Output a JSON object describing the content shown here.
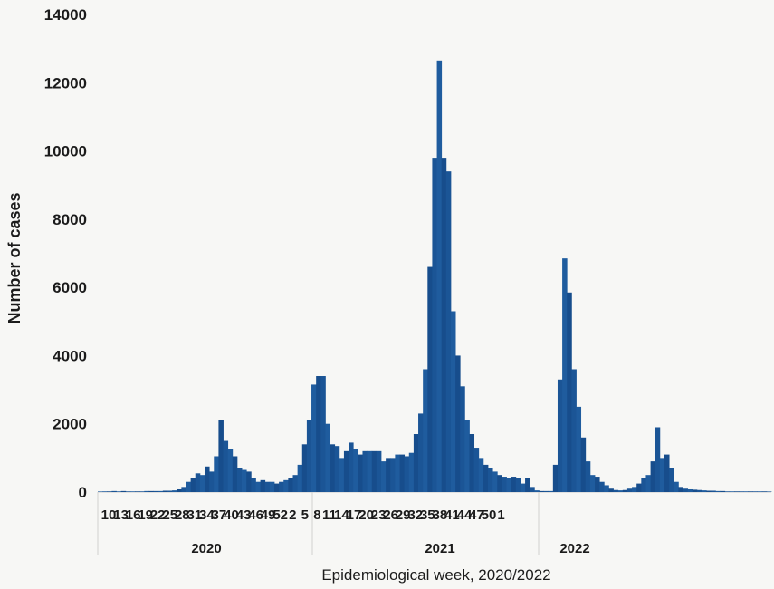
{
  "chart_data": {
    "type": "bar",
    "title": "",
    "xlabel": "Epidemiological week, 2020/2022",
    "ylabel": "Number of cases",
    "ylim": [
      0,
      14000
    ],
    "yticks": [
      "0",
      "2000",
      "4000",
      "6000",
      "8000",
      "10000",
      "12000",
      "14000"
    ],
    "xtick_labels": [
      "10",
      "13",
      "16",
      "19",
      "22",
      "25",
      "28",
      "31",
      "34",
      "37",
      "40",
      "43",
      "46",
      "49",
      "52",
      "2",
      "5",
      "8",
      "11",
      "14",
      "17",
      "20",
      "23",
      "26",
      "29",
      "32",
      "35",
      "38",
      "41",
      "44",
      "47",
      "50",
      "1"
    ],
    "year_labels": [
      "2020",
      "2021",
      "2022"
    ],
    "bar_color": "#1b5596",
    "series": [
      {
        "values": [
          10,
          20,
          20,
          30,
          20,
          30,
          20,
          20,
          20,
          20,
          30,
          30,
          30,
          30,
          40,
          40,
          50,
          80,
          150,
          300,
          400,
          550,
          500,
          750,
          600,
          1050,
          2100,
          1500,
          1250,
          1050,
          700,
          650,
          600,
          400,
          300,
          350,
          300,
          300,
          250,
          300,
          350,
          400,
          500,
          800,
          1400,
          2100,
          3150,
          3400,
          3400,
          2000,
          1400,
          1350,
          1000,
          1200,
          1450,
          1250,
          1100,
          1200,
          1200,
          1200,
          1200,
          900,
          1000,
          1000,
          1100,
          1100,
          1050,
          1150,
          1700,
          2300,
          3600,
          6600,
          9800,
          12650,
          9800,
          9400,
          5300,
          4000,
          3100,
          2100,
          1700,
          1300,
          1000,
          800,
          700,
          600,
          500,
          450,
          400,
          450,
          400,
          250,
          400,
          150,
          50,
          30,
          30,
          30,
          800,
          3300,
          6850,
          5850,
          3600,
          2500,
          1600,
          900,
          500,
          450,
          300,
          200,
          100,
          60,
          50,
          60,
          100,
          150,
          250,
          400,
          500,
          900,
          1900,
          1000,
          1100,
          700,
          300,
          150,
          100,
          80,
          70,
          60,
          50,
          40,
          40,
          30,
          30,
          20,
          20,
          20,
          20,
          20,
          20,
          20,
          20,
          20,
          15
        ]
      }
    ]
  }
}
